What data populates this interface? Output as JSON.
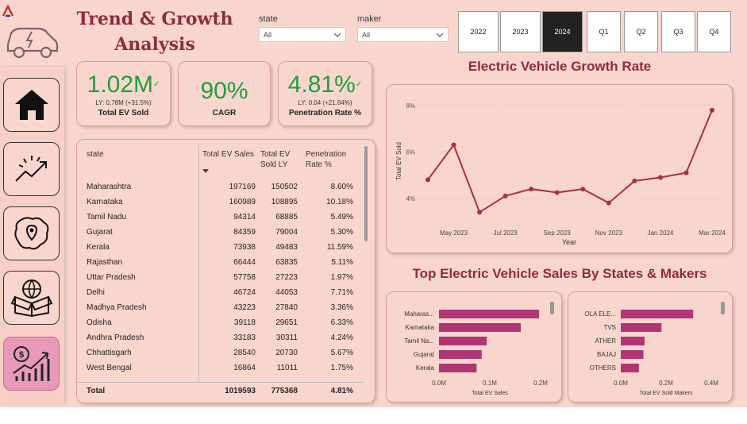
{
  "title": "Trend & Growth Analysis",
  "filters": [
    {
      "label": "state",
      "value": "All"
    },
    {
      "label": "maker",
      "value": "All"
    }
  ],
  "years": [
    "2022",
    "2023",
    "2024"
  ],
  "selected_year": "2024",
  "quarters": [
    "Q1",
    "Q2",
    "Q3",
    "Q4"
  ],
  "nav_icons": [
    "home-icon",
    "trend-icon",
    "map-icon",
    "box-icon",
    "growth-chart-icon"
  ],
  "cards": {
    "total_ev": {
      "value": "1.02M",
      "ly": "LY: 0.78M (+31.5%)",
      "label": "Total EV Sold"
    },
    "cagr": {
      "value": "90%",
      "label": "CAGR"
    },
    "penetration": {
      "value": "4.81%",
      "ly": "LY: 0.04 (+21.84%)",
      "label": "Penetration Rate %"
    }
  },
  "table": {
    "headers": {
      "state": "state",
      "sales": "Total EV Sales",
      "ly": "Total EV Sold LY",
      "rate": "Penetration Rate %"
    },
    "rows": [
      {
        "state": "Maharashtra",
        "sales": "197169",
        "ly": "150502",
        "rate": "8.60%"
      },
      {
        "state": "Karnataka",
        "sales": "160989",
        "ly": "108895",
        "rate": "10.18%"
      },
      {
        "state": "Tamil Nadu",
        "sales": "94314",
        "ly": "68885",
        "rate": "5.49%"
      },
      {
        "state": "Gujarat",
        "sales": "84359",
        "ly": "79004",
        "rate": "5.30%"
      },
      {
        "state": "Kerala",
        "sales": "73938",
        "ly": "49483",
        "rate": "11.59%"
      },
      {
        "state": "Rajasthan",
        "sales": "66444",
        "ly": "63835",
        "rate": "5.11%"
      },
      {
        "state": "Uttar Pradesh",
        "sales": "57758",
        "ly": "27223",
        "rate": "1.97%"
      },
      {
        "state": "Delhi",
        "sales": "46724",
        "ly": "44053",
        "rate": "7.71%"
      },
      {
        "state": "Madhya Pradesh",
        "sales": "43223",
        "ly": "27840",
        "rate": "3.36%"
      },
      {
        "state": "Odisha",
        "sales": "39118",
        "ly": "29651",
        "rate": "6.33%"
      },
      {
        "state": "Andhra Pradesh",
        "sales": "33183",
        "ly": "30311",
        "rate": "4.24%"
      },
      {
        "state": "Chhattisgarh",
        "sales": "28540",
        "ly": "20730",
        "rate": "5.67%"
      },
      {
        "state": "West Bengal",
        "sales": "16864",
        "ly": "11011",
        "rate": "1.75%"
      }
    ],
    "total": {
      "state": "Total",
      "sales": "1019593",
      "ly": "775368",
      "rate": "4.81%"
    }
  },
  "growth_title": "Electric Vehicle Growth Rate",
  "sales_title": "Top Electric Vehicle Sales By States & Makers",
  "chart_data": [
    {
      "type": "line",
      "title": "Electric Vehicle Growth Rate",
      "xlabel": "Year",
      "ylabel": "Total EV Sold",
      "x": [
        "Apr 2023",
        "May 2023",
        "Jun 2023",
        "Jul 2023",
        "Aug 2023",
        "Sep 2023",
        "Oct 2023",
        "Nov 2023",
        "Dec 2023",
        "Jan 2024",
        "Feb 2024",
        "Mar 2024"
      ],
      "x_ticks": [
        "May 2023",
        "Jul 2023",
        "Sep 2023",
        "Nov 2023",
        "Jan 2024",
        "Mar 2024"
      ],
      "y_ticks": [
        "4%",
        "6%",
        "8%"
      ],
      "values": [
        4.8,
        6.3,
        3.4,
        4.1,
        4.4,
        4.25,
        4.4,
        3.8,
        4.75,
        4.9,
        5.1,
        7.8
      ],
      "ylim": [
        3,
        8.2
      ],
      "color": "#a8313f"
    },
    {
      "type": "bar",
      "orientation": "horizontal",
      "categories": [
        "Maharas...",
        "Karnataka",
        "Tamil Na...",
        "Gujarat",
        "Kerala"
      ],
      "values": [
        0.197,
        0.161,
        0.094,
        0.084,
        0.074
      ],
      "xlabel": "Total EV Sales",
      "x_ticks": [
        "0.0M",
        "0.1M",
        "0.2M"
      ],
      "xlim": [
        0,
        0.2
      ],
      "color": "#b03574"
    },
    {
      "type": "bar",
      "orientation": "horizontal",
      "categories": [
        "OLA ELE...",
        "TVS",
        "ATHER",
        "BAJAJ",
        "OTHERS"
      ],
      "values": [
        0.32,
        0.18,
        0.105,
        0.1,
        0.08
      ],
      "xlabel": "Total EV Sold Makers",
      "x_ticks": [
        "0.0M",
        "0.2M",
        "0.4M"
      ],
      "xlim": [
        0,
        0.4
      ],
      "color": "#b03574"
    }
  ]
}
